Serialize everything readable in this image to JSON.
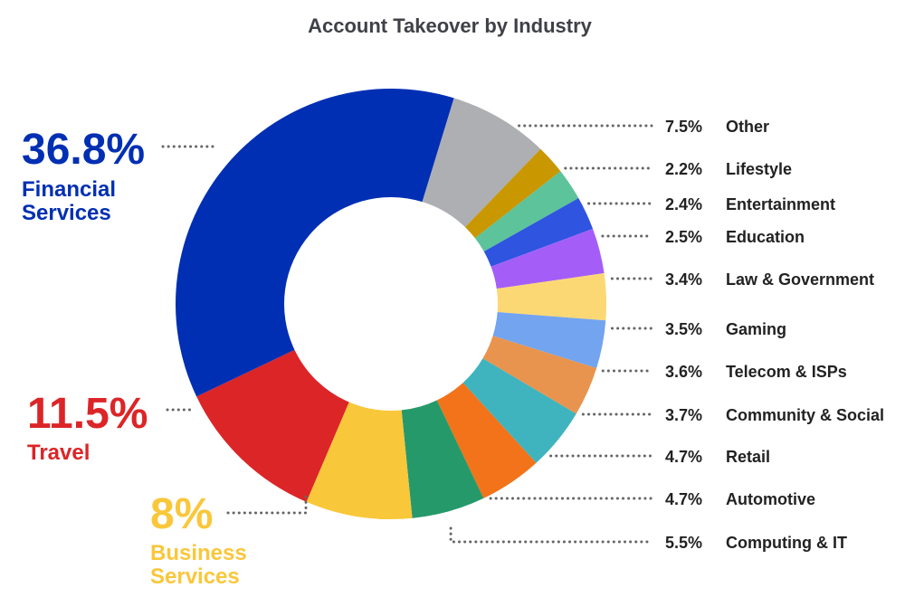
{
  "chart_data": {
    "type": "pie",
    "title": "Account Takeover by Industry",
    "style": "donut",
    "slices": [
      {
        "name": "Other",
        "value": 7.5,
        "label": "7.5%",
        "color": "#aeafb3"
      },
      {
        "name": "Lifestyle",
        "value": 2.2,
        "label": "2.2%",
        "color": "#c99700"
      },
      {
        "name": "Entertainment",
        "value": 2.4,
        "label": "2.4%",
        "color": "#5cc39b"
      },
      {
        "name": "Education",
        "value": 2.5,
        "label": "2.5%",
        "color": "#2e54e0"
      },
      {
        "name": "Law & Government",
        "value": 3.4,
        "label": "3.4%",
        "color": "#a45ef7"
      },
      {
        "name": "Gaming",
        "value": 3.5,
        "label": "3.5%",
        "color": "#fcd874"
      },
      {
        "name": "Telecom & ISPs",
        "value": 3.6,
        "label": "3.6%",
        "color": "#72a4f0"
      },
      {
        "name": "Community & Social",
        "value": 3.7,
        "label": "3.7%",
        "color": "#e8944f"
      },
      {
        "name": "Retail",
        "value": 4.7,
        "label": "4.7%",
        "color": "#3fb4be"
      },
      {
        "name": "Automotive",
        "value": 4.7,
        "label": "4.7%",
        "color": "#f27319"
      },
      {
        "name": "Computing & IT",
        "value": 5.5,
        "label": "5.5%",
        "color": "#26996b"
      },
      {
        "name": "Business Services",
        "value": 8,
        "label": "8%",
        "label_lines": [
          "Business",
          "Services"
        ],
        "color": "#f9c73a"
      },
      {
        "name": "Travel",
        "value": 11.5,
        "label": "11.5%",
        "label_lines": [
          "Travel"
        ],
        "color": "#dc2527"
      },
      {
        "name": "Financial Services",
        "value": 36.8,
        "label": "36.8%",
        "label_lines": [
          "Financial",
          "Services"
        ],
        "color": "#002fb3"
      }
    ]
  }
}
